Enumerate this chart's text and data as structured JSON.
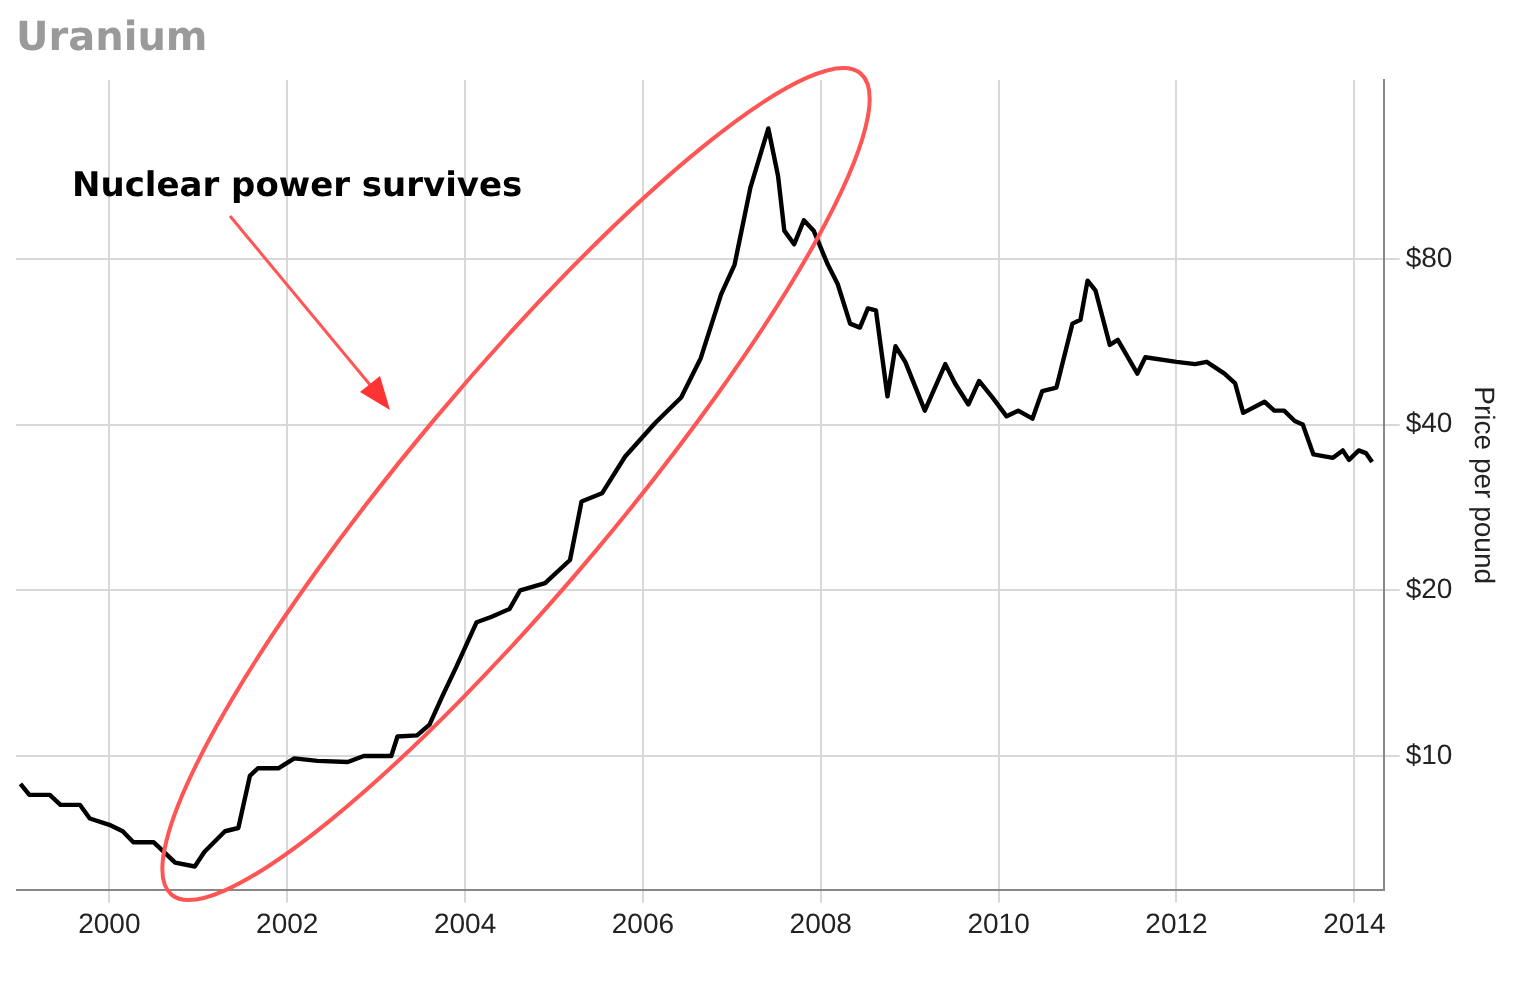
{
  "chart_data": {
    "type": "line",
    "title": "Uranium",
    "ylabel": "Price per pound",
    "annotations": [
      "Nuclear power survives"
    ],
    "series": [
      {
        "color": "#000000",
        "x": [
          1999.0,
          1999.1,
          1999.33,
          1999.45,
          1999.67,
          1999.78,
          2000.0,
          2000.15,
          2000.27,
          2000.5,
          2000.74,
          2000.96,
          2001.07,
          2001.3,
          2001.45,
          2001.58,
          2001.67,
          2001.9,
          2002.08,
          2002.34,
          2002.68,
          2002.86,
          2003.17,
          2003.24,
          2003.46,
          2003.6,
          2003.75,
          2003.9,
          2004.13,
          2004.3,
          2004.5,
          2004.62,
          2004.9,
          2005.18,
          2005.31,
          2005.54,
          2005.8,
          2006.14,
          2006.43,
          2006.65,
          2006.88,
          2007.03,
          2007.21,
          2007.41,
          2007.52,
          2007.59,
          2007.7,
          2007.81,
          2007.92,
          2008.08,
          2008.19,
          2008.33,
          2008.44,
          2008.53,
          2008.62,
          2008.75,
          2008.84,
          2008.95,
          2009.17,
          2009.4,
          2009.51,
          2009.66,
          2009.78,
          2009.93,
          2010.09,
          2010.22,
          2010.38,
          2010.49,
          2010.65,
          2010.83,
          2010.92,
          2011.0,
          2011.09,
          2011.25,
          2011.34,
          2011.56,
          2011.65,
          2012.0,
          2012.21,
          2012.34,
          2012.54,
          2012.66,
          2012.75,
          2012.99,
          2013.1,
          2013.21,
          2013.33,
          2013.42,
          2013.54,
          2013.76,
          2013.87,
          2013.94,
          2014.05,
          2014.13,
          2014.2
        ],
        "values": [
          8.9,
          8.5,
          8.5,
          8.15,
          8.15,
          7.7,
          7.5,
          7.3,
          6.97,
          6.97,
          6.4,
          6.3,
          6.7,
          7.3,
          7.4,
          9.2,
          9.5,
          9.5,
          9.9,
          9.8,
          9.75,
          10,
          10,
          10.85,
          10.9,
          11.4,
          12.9,
          14.5,
          17.5,
          17.9,
          18.5,
          20,
          20.6,
          22.7,
          29,
          30,
          35,
          40.3,
          44.8,
          52.8,
          69,
          78,
          108,
          138,
          113,
          90,
          85,
          94,
          90,
          78,
          72,
          61,
          60,
          65,
          64.5,
          45,
          55.5,
          52,
          42.4,
          51.5,
          47.5,
          43.5,
          48,
          44.8,
          41.4,
          42.4,
          41,
          46,
          46.7,
          61,
          62,
          73,
          70,
          55.8,
          57,
          49.5,
          53,
          52,
          51.5,
          52,
          49.5,
          47.5,
          42,
          44,
          42.4,
          42.4,
          40.6,
          40,
          35.3,
          34.8,
          35.9,
          34.5,
          35.9,
          35.5,
          34.2
        ]
      }
    ],
    "xlim": [
      1998.95,
      2014.33
    ],
    "xticks": [
      2000,
      2002,
      2004,
      2006,
      2008,
      2010,
      2012,
      2014
    ],
    "ylim": [
      5.7,
      169
    ],
    "yticks": [
      {
        "value": 10,
        "label": "$10"
      },
      {
        "value": 20,
        "label": "$20"
      },
      {
        "value": 40,
        "label": "$40"
      },
      {
        "value": 80,
        "label": "$80"
      }
    ],
    "log": "y",
    "grid": true,
    "legend": false,
    "marker": "none",
    "line_style": "solid"
  }
}
